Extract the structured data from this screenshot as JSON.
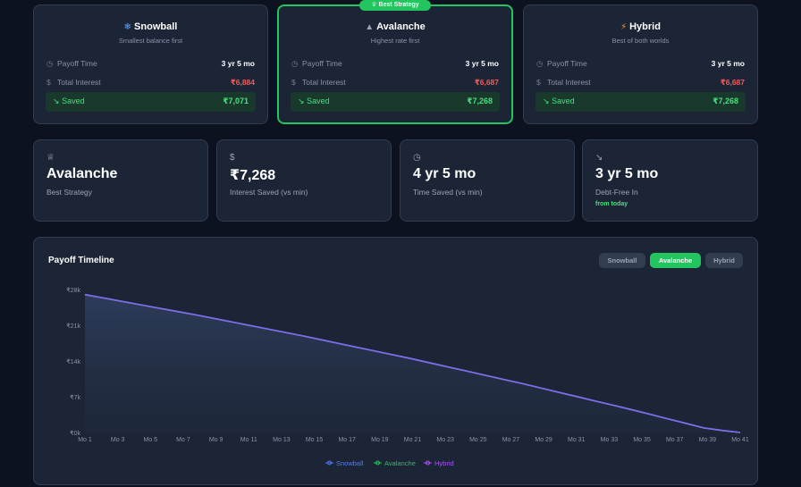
{
  "strategies": [
    {
      "name": "Snowball",
      "icon": "❄",
      "icon_name": "snowflake-icon",
      "subtitle": "Smallest balance first",
      "payoff_label": "Payoff Time",
      "payoff": "3 yr 5 mo",
      "interest_label": "Total Interest",
      "interest": "₹6,884",
      "saved_label": "Saved",
      "saved": "₹7,071"
    },
    {
      "name": "Avalanche",
      "icon": "▲",
      "icon_name": "mountain-icon",
      "subtitle": "Highest rate first",
      "payoff_label": "Payoff Time",
      "payoff": "3 yr 5 mo",
      "interest_label": "Total Interest",
      "interest": "₹6,687",
      "saved_label": "Saved",
      "saved": "₹7,268",
      "badge": "Best Strategy"
    },
    {
      "name": "Hybrid",
      "icon": "⚡",
      "icon_name": "lightning-icon",
      "subtitle": "Best of both worlds",
      "payoff_label": "Payoff Time",
      "payoff": "3 yr 5 mo",
      "interest_label": "Total Interest",
      "interest": "₹6,687",
      "saved_label": "Saved",
      "saved": "₹7,268"
    }
  ],
  "stats": [
    {
      "icon_name": "trophy-icon",
      "value": "Avalanche",
      "label": "Best Strategy"
    },
    {
      "icon_name": "dollar-icon",
      "value": "₹7,268",
      "label": "Interest Saved (vs min)"
    },
    {
      "icon_name": "clock-icon",
      "value": "4 yr 5 mo",
      "label": "Time Saved (vs min)"
    },
    {
      "icon_name": "trend-down-icon",
      "value": "3 yr 5 mo",
      "label": "Debt-Free In",
      "note": "from today"
    }
  ],
  "chart": {
    "title": "Payoff Timeline",
    "toggles": [
      {
        "label": "Snowball",
        "active": false
      },
      {
        "label": "Avalanche",
        "active": true
      },
      {
        "label": "Hybrid",
        "active": false
      }
    ]
  },
  "colors": {
    "snowball": "#4f7cf7",
    "avalanche": "#22c55e",
    "hybrid": "#a855f7",
    "line": "#7c6ee6",
    "accent": "#22c55e",
    "danger": "#f05c5c"
  },
  "chart_data": {
    "type": "area",
    "title": "Payoff Timeline",
    "x": [
      "Mo 1",
      "Mo 3",
      "Mo 5",
      "Mo 7",
      "Mo 9",
      "Mo 11",
      "Mo 13",
      "Mo 15",
      "Mo 17",
      "Mo 19",
      "Mo 21",
      "Mo 23",
      "Mo 25",
      "Mo 27",
      "Mo 29",
      "Mo 31",
      "Mo 33",
      "Mo 35",
      "Mo 37",
      "Mo 39",
      "Mo 41"
    ],
    "y_ticks": [
      "₹0k",
      "₹7k",
      "₹14k",
      "₹21k",
      "₹28k"
    ],
    "ylim": [
      0,
      28000
    ],
    "series": [
      {
        "name": "Snowball",
        "values": [
          27000,
          25700,
          24400,
          23100,
          21700,
          20300,
          18900,
          17400,
          15900,
          14400,
          12800,
          11200,
          9600,
          7900,
          6200,
          4500,
          2700,
          900,
          0,
          0,
          0
        ]
      },
      {
        "name": "Avalanche",
        "values": [
          27000,
          25700,
          24400,
          23100,
          21700,
          20300,
          18900,
          17400,
          15900,
          14400,
          12800,
          11200,
          9600,
          7900,
          6200,
          4500,
          2700,
          900,
          0,
          0,
          0
        ]
      },
      {
        "name": "Hybrid",
        "values": [
          27000,
          25700,
          24400,
          23100,
          21700,
          20300,
          18900,
          17400,
          15900,
          14400,
          12800,
          11200,
          9600,
          7900,
          6200,
          4500,
          2700,
          900,
          0,
          0,
          0
        ]
      }
    ],
    "full_values": [
      27000,
      26350,
      25700,
      25050,
      24400,
      23750,
      23100,
      22400,
      21700,
      21000,
      20300,
      19600,
      18900,
      18150,
      17400,
      16650,
      15900,
      15150,
      14400,
      13600,
      12800,
      12000,
      11200,
      10400,
      9600,
      8750,
      7900,
      7050,
      6200,
      5350,
      4500,
      3600,
      2700,
      1800,
      900,
      400,
      0
    ],
    "legend": [
      "Snowball",
      "Avalanche",
      "Hybrid"
    ],
    "grid": false,
    "legend_position": "bottom"
  }
}
